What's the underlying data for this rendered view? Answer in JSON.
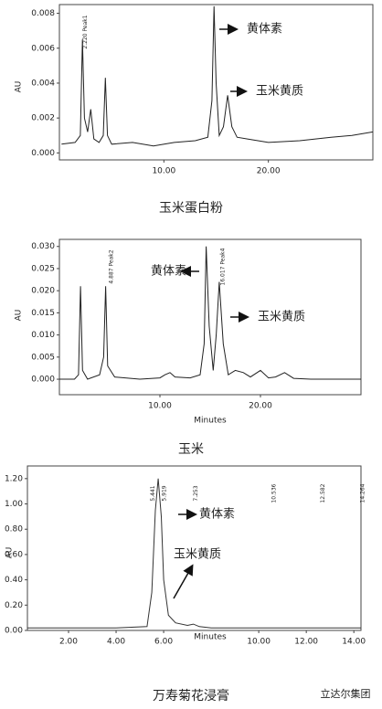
{
  "chart_data": [
    {
      "type": "line",
      "title": "玉米蛋白粉",
      "y_label": "AU",
      "xlim": [
        0,
        30
      ],
      "ylim": [
        -0.0004,
        0.0085
      ],
      "xticks": [
        {
          "value": 10,
          "label": "10.00"
        },
        {
          "value": 20,
          "label": "20.00"
        }
      ],
      "yticks": [
        {
          "value": 0,
          "label": "0.000"
        },
        0.002,
        0.004,
        0.006,
        0.008
      ],
      "annotations": [
        "黄体素",
        "玉米黄质"
      ],
      "peak_labels": [
        {
          "x": 2.22,
          "label": "2.220 Peak1"
        }
      ],
      "series": [
        {
          "color": "#222222",
          "x": [
            0.2,
            1.5,
            2.0,
            2.2,
            2.4,
            2.7,
            3.0,
            3.3,
            3.8,
            4.2,
            4.4,
            4.6,
            5.0,
            7,
            9,
            11,
            13,
            14.2,
            14.6,
            14.8,
            15.0,
            15.3,
            15.7,
            16.1,
            16.5,
            17,
            18,
            20,
            23,
            26,
            28,
            30
          ],
          "values": [
            0.0005,
            0.0006,
            0.001,
            0.0065,
            0.002,
            0.0012,
            0.0025,
            0.0008,
            0.0006,
            0.001,
            0.0043,
            0.001,
            0.0005,
            0.0006,
            0.0004,
            0.0006,
            0.0007,
            0.0009,
            0.003,
            0.0084,
            0.004,
            0.001,
            0.0015,
            0.0033,
            0.0015,
            0.0009,
            0.0008,
            0.0006,
            0.0007,
            0.0009,
            0.001,
            0.0012
          ]
        }
      ]
    },
    {
      "type": "line",
      "title": "玉米",
      "x_label": "Minutes",
      "y_label": "AU",
      "xlim": [
        0,
        30
      ],
      "ylim": [
        -0.0035,
        0.0316
      ],
      "xticks": [
        {
          "value": 10,
          "label": "10.00"
        },
        {
          "value": 20,
          "label": "20.00"
        }
      ],
      "yticks": [
        {
          "value": 0,
          "label": "0.000"
        },
        0.005,
        {
          "value": 0.01,
          "label": "0.010"
        },
        0.015,
        {
          "value": 0.02,
          "label": "0.020"
        },
        0.025,
        {
          "value": 0.03,
          "label": "0.030"
        }
      ],
      "annotations": [
        "黄体素",
        "玉米黄质"
      ],
      "peak_labels": [
        {
          "x": 4.887,
          "label": "4.887 Peak2"
        },
        {
          "x": 16.017,
          "label": "16.017 Peak4"
        }
      ],
      "series": [
        {
          "color": "#222222",
          "x": [
            0,
            1.5,
            1.9,
            2.1,
            2.3,
            2.8,
            4.0,
            4.4,
            4.6,
            4.8,
            5.5,
            8,
            10,
            10.5,
            11,
            11.5,
            13,
            14.0,
            14.4,
            14.6,
            14.9,
            15.3,
            15.6,
            15.9,
            16.3,
            16.8,
            17.5,
            18.3,
            19,
            20,
            20.8,
            21.5,
            22.4,
            23.3,
            25,
            28,
            30
          ],
          "values": [
            0,
            0,
            0.001,
            0.021,
            0.002,
            0,
            0.001,
            0.005,
            0.021,
            0.003,
            0.0005,
            0,
            0.0003,
            0.001,
            0.0015,
            0.0005,
            0.0003,
            0.001,
            0.008,
            0.03,
            0.012,
            0.002,
            0.01,
            0.022,
            0.008,
            0.001,
            0.002,
            0.0015,
            0.0005,
            0.002,
            0.0003,
            0.0005,
            0.0015,
            0.0002,
            0,
            0,
            0
          ]
        }
      ]
    },
    {
      "type": "line",
      "title": "万寿菊花浸膏",
      "x_label": "Minutes",
      "y_label": "AU",
      "xlim": [
        0.27,
        14.3
      ],
      "ylim": [
        0,
        1.3
      ],
      "xticks": [
        {
          "value": 2,
          "label": "2.00"
        },
        {
          "value": 4,
          "label": "4.00"
        },
        {
          "value": 6,
          "label": "6.00"
        },
        {
          "value": 10,
          "label": "10.00"
        },
        {
          "value": 12,
          "label": "12.00"
        },
        {
          "value": 14,
          "label": "14.00"
        }
      ],
      "yticks": [
        {
          "value": 0,
          "label": "0.00"
        },
        {
          "value": 0.2,
          "label": "0.20"
        },
        {
          "value": 0.4,
          "label": "0.40"
        },
        {
          "value": 0.6,
          "label": "0.60"
        },
        {
          "value": 0.8,
          "label": "0.80"
        },
        {
          "value": 1,
          "label": "1.00"
        },
        {
          "value": 1.2,
          "label": "1.20"
        }
      ],
      "annotations": [
        "黄体素",
        "玉米黄质"
      ],
      "peak_labels": [
        {
          "x": 5.441,
          "label": "5.441"
        },
        {
          "x": 5.919,
          "label": "5.919"
        },
        {
          "x": 7.253,
          "label": "7.253"
        },
        {
          "x": 10.536,
          "label": "10.536"
        },
        {
          "x": 12.582,
          "label": "12.582"
        },
        {
          "x": 14.264,
          "label": "14.264"
        }
      ],
      "series": [
        {
          "color": "#333333",
          "x": [
            0.27,
            2,
            4,
            5.3,
            5.5,
            5.65,
            5.77,
            5.9,
            6.0,
            6.2,
            6.5,
            7,
            7.25,
            7.5,
            8,
            10,
            12,
            14.3
          ],
          "values": [
            0.02,
            0.02,
            0.02,
            0.03,
            0.3,
            0.95,
            1.2,
            0.9,
            0.4,
            0.12,
            0.06,
            0.04,
            0.05,
            0.03,
            0.02,
            0.02,
            0.02,
            0.02
          ]
        }
      ]
    }
  ],
  "watermark": "立达尔集团"
}
